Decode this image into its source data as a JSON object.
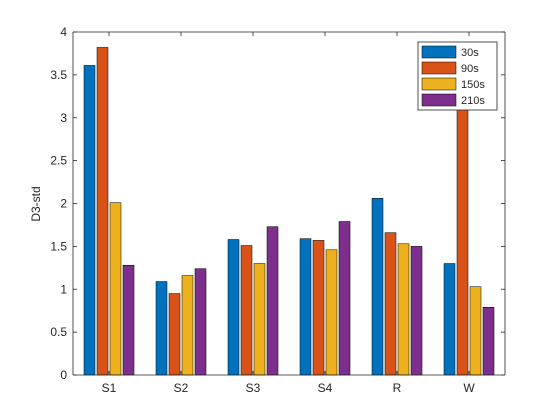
{
  "chart_data": {
    "type": "bar",
    "categories": [
      "S1",
      "S2",
      "S3",
      "S4",
      "R",
      "W"
    ],
    "series": [
      {
        "name": "30s",
        "color": "#0072BD",
        "values": [
          3.61,
          1.09,
          1.58,
          1.59,
          2.06,
          1.3
        ]
      },
      {
        "name": "90s",
        "color": "#D95319",
        "values": [
          3.82,
          0.95,
          1.51,
          1.57,
          1.66,
          3.3
        ]
      },
      {
        "name": "150s",
        "color": "#EDB120",
        "values": [
          2.01,
          1.16,
          1.3,
          1.46,
          1.53,
          1.03
        ]
      },
      {
        "name": "210s",
        "color": "#7E2F8E",
        "values": [
          1.28,
          1.24,
          1.73,
          1.79,
          1.5,
          0.79
        ]
      }
    ],
    "ylabel": "D3-std",
    "xlabel": "",
    "ylim": [
      0,
      4
    ],
    "yticks": [
      0,
      0.5,
      1,
      1.5,
      2,
      2.5,
      3,
      3.5,
      4
    ],
    "ytick_labels": [
      "0",
      "0.5",
      "1",
      "1.5",
      "2",
      "2.5",
      "3",
      "3.5",
      "4"
    ],
    "grid": false,
    "legend_position": "top-right"
  }
}
